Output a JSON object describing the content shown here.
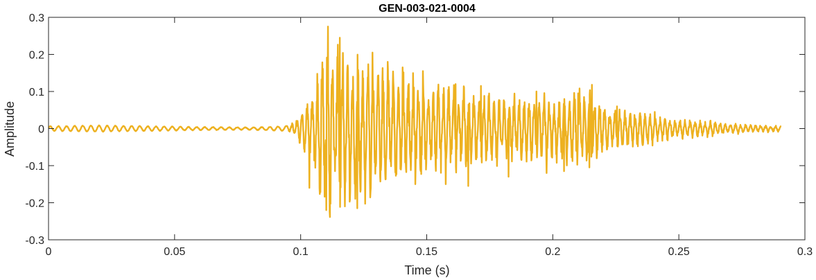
{
  "chart_data": {
    "type": "line",
    "title": "GEN-003-021-0004",
    "xlabel": "Time (s)",
    "ylabel": "Amplitude",
    "xlim": [
      0,
      0.3
    ],
    "ylim": [
      -0.3,
      0.3
    ],
    "xticks": [
      0,
      0.05,
      0.1,
      0.15,
      0.2,
      0.25,
      0.3
    ],
    "yticks": [
      -0.3,
      -0.2,
      -0.1,
      0,
      0.1,
      0.2,
      0.3
    ],
    "xtick_labels": [
      "0",
      "0.05",
      "0.1",
      "0.15",
      "0.2",
      "0.25",
      "0.3"
    ],
    "ytick_labels": [
      "-0.3",
      "-0.2",
      "-0.1",
      "0",
      "0.1",
      "0.2",
      "0.3"
    ],
    "grid": true,
    "legend": "none",
    "line_color": "#EDB120",
    "series": [
      {
        "x_start": 0,
        "x_end": 0.2905,
        "envelope_points": [
          [
            0.0,
            0.006
          ],
          [
            0.02,
            0.008
          ],
          [
            0.04,
            0.006
          ],
          [
            0.06,
            0.004
          ],
          [
            0.08,
            0.003
          ],
          [
            0.094,
            0.006
          ],
          [
            0.098,
            0.02
          ],
          [
            0.1,
            0.05
          ],
          [
            0.104,
            0.09
          ],
          [
            0.108,
            0.2
          ],
          [
            0.111,
            0.27
          ],
          [
            0.113,
            0.24
          ],
          [
            0.118,
            0.23
          ],
          [
            0.122,
            0.21
          ],
          [
            0.126,
            0.19
          ],
          [
            0.13,
            0.18
          ],
          [
            0.136,
            0.16
          ],
          [
            0.142,
            0.15
          ],
          [
            0.15,
            0.12
          ],
          [
            0.16,
            0.11
          ],
          [
            0.175,
            0.1
          ],
          [
            0.19,
            0.09
          ],
          [
            0.205,
            0.09
          ],
          [
            0.215,
            0.11
          ],
          [
            0.218,
            0.08
          ],
          [
            0.225,
            0.06
          ],
          [
            0.235,
            0.05
          ],
          [
            0.245,
            0.03
          ],
          [
            0.255,
            0.025
          ],
          [
            0.265,
            0.02
          ],
          [
            0.275,
            0.012
          ],
          [
            0.2905,
            0.008
          ]
        ],
        "peaks": [
          [
            0.1108,
            0.275
          ],
          [
            0.1102,
            -0.22
          ],
          [
            0.1175,
            -0.21
          ],
          [
            0.1225,
            -0.215
          ],
          [
            0.1155,
            0.245
          ],
          [
            0.1035,
            -0.16
          ],
          [
            0.1285,
            0.205
          ],
          [
            0.1345,
            0.18
          ],
          [
            0.1405,
            0.165
          ],
          [
            0.1455,
            -0.15
          ],
          [
            0.1485,
            0.155
          ],
          [
            0.1575,
            -0.15
          ],
          [
            0.1615,
            0.12
          ],
          [
            0.1665,
            -0.155
          ],
          [
            0.1715,
            0.115
          ],
          [
            0.1825,
            -0.13
          ],
          [
            0.2155,
            0.118
          ],
          [
            0.2145,
            -0.105
          ],
          [
            0.2255,
            0.06
          ],
          [
            0.2405,
            0.045
          ],
          [
            0.2045,
            -0.115
          ],
          [
            0.21,
            0.095
          ],
          [
            0.1935,
            0.1
          ],
          [
            0.1975,
            -0.12
          ]
        ]
      }
    ]
  }
}
